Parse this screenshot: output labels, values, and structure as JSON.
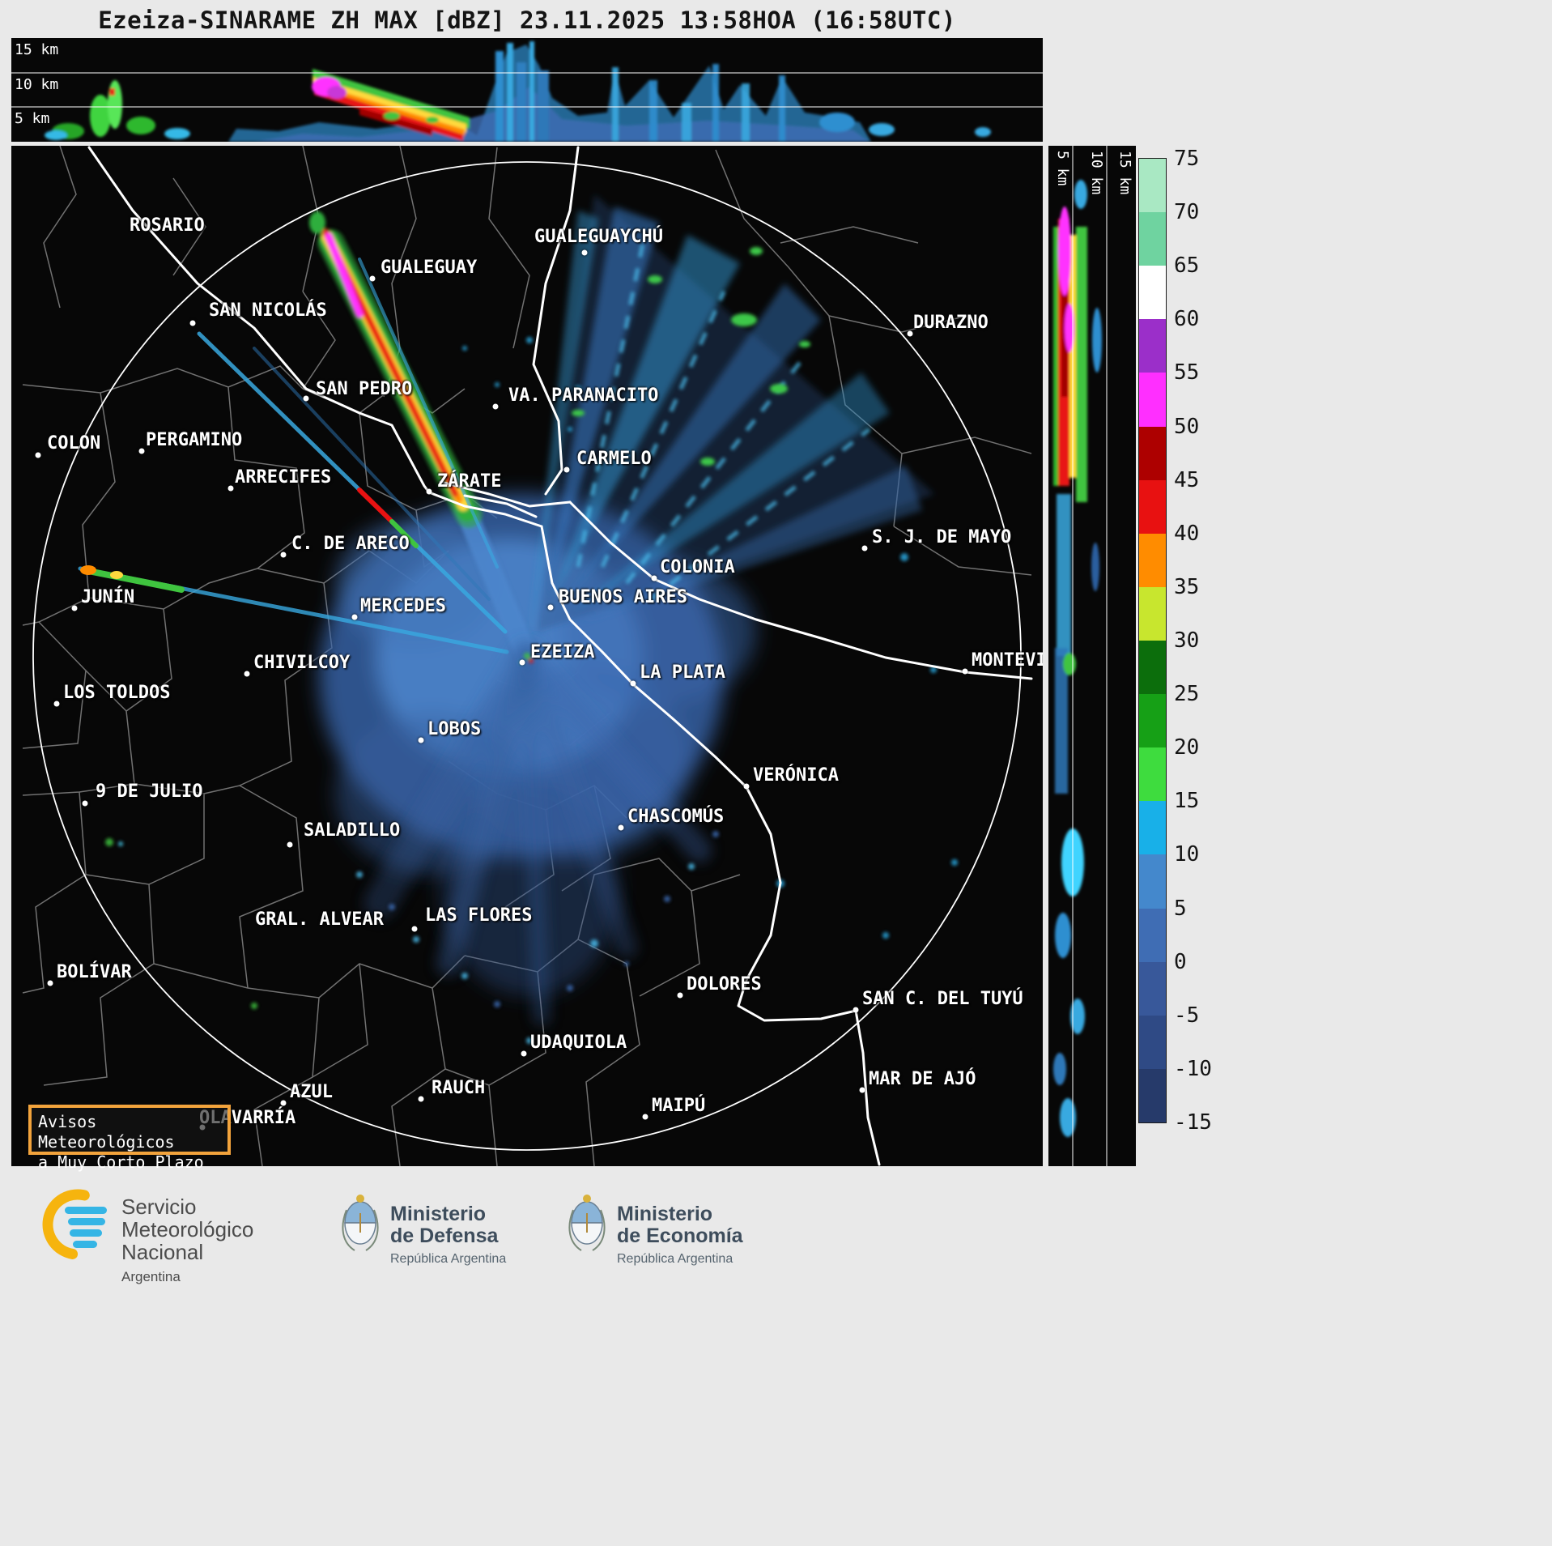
{
  "title": "Ezeiza-SINARAME ZH MAX [dBZ] 23.11.2025 13:58HOA (16:58UTC)",
  "top_profile": {
    "labels": [
      "15 km",
      "10 km",
      "5 km"
    ]
  },
  "right_profile": {
    "labels": [
      "5 km",
      "10 km",
      "15 km"
    ]
  },
  "colorbar": {
    "ticks": [
      "75",
      "70",
      "65",
      "60",
      "55",
      "50",
      "45",
      "40",
      "35",
      "30",
      "25",
      "20",
      "15",
      "10",
      "5",
      "0",
      "-5",
      "-10",
      "-15"
    ],
    "colors": [
      "#a9e8c3",
      "#6fd3a0",
      "#ffffff",
      "#9b2fc9",
      "#ff2fff",
      "#ad0000",
      "#e81111",
      "#ff8c00",
      "#c8e62e",
      "#0c6e0c",
      "#16a016",
      "#3edc3e",
      "#18b0e8",
      "#4488cc",
      "#3f6db4",
      "#38589a",
      "#2f4a85",
      "#263a6a"
    ]
  },
  "map": {
    "cities": [
      {
        "name": "ROSARIO",
        "label": [
          146,
          86
        ],
        "dot": null
      },
      {
        "name": "GUALEGUAYCHÚ",
        "label": [
          646,
          100
        ],
        "dot": [
          708,
          132
        ]
      },
      {
        "name": "GUALEGUAY",
        "label": [
          456,
          138
        ],
        "dot": [
          446,
          164
        ]
      },
      {
        "name": "SAN NICOLÁS",
        "label": [
          244,
          191
        ],
        "dot": [
          224,
          219
        ]
      },
      {
        "name": "DURAZNO",
        "label": [
          1114,
          206
        ],
        "dot": [
          1110,
          232
        ]
      },
      {
        "name": "SAN PEDRO",
        "label": [
          376,
          288
        ],
        "dot": [
          364,
          312
        ]
      },
      {
        "name": "VA. PARANACITO",
        "label": [
          614,
          296
        ],
        "dot": [
          598,
          322
        ]
      },
      {
        "name": "COLON",
        "label": [
          44,
          355
        ],
        "dot": [
          33,
          382
        ]
      },
      {
        "name": "PERGAMINO",
        "label": [
          166,
          351
        ],
        "dot": [
          161,
          377
        ]
      },
      {
        "name": "CARMELO",
        "label": [
          698,
          374
        ],
        "dot": [
          686,
          400
        ]
      },
      {
        "name": "ARRECIFES",
        "label": [
          276,
          397
        ],
        "dot": [
          271,
          423
        ]
      },
      {
        "name": "ZÁRATE",
        "label": [
          526,
          402
        ],
        "dot": [
          516,
          427
        ]
      },
      {
        "name": "C. DE ARECO",
        "label": [
          346,
          479
        ],
        "dot": [
          336,
          505
        ]
      },
      {
        "name": "S. J. DE MAYO",
        "label": [
          1063,
          471
        ],
        "dot": [
          1054,
          497
        ]
      },
      {
        "name": "COLONIA",
        "label": [
          801,
          508
        ],
        "dot": [
          794,
          534
        ]
      },
      {
        "name": "JUNÍN",
        "label": [
          86,
          545
        ],
        "dot": [
          78,
          571
        ]
      },
      {
        "name": "BUENOS AIRES",
        "label": [
          676,
          545
        ],
        "dot": [
          666,
          570
        ]
      },
      {
        "name": "MERCEDES",
        "label": [
          431,
          556
        ],
        "dot": [
          424,
          582
        ]
      },
      {
        "name": "EZEIZA",
        "label": [
          641,
          613
        ],
        "dot": [
          631,
          638
        ]
      },
      {
        "name": "CHIVILCOY",
        "label": [
          299,
          626
        ],
        "dot": [
          291,
          652
        ]
      },
      {
        "name": "LA PLATA",
        "label": [
          776,
          638
        ],
        "dot": [
          768,
          664
        ]
      },
      {
        "name": "MONTEVIDEO",
        "label": [
          1186,
          623
        ],
        "dot": [
          1178,
          649
        ]
      },
      {
        "name": "LOS TOLDOS",
        "label": [
          64,
          663
        ],
        "dot": [
          56,
          689
        ]
      },
      {
        "name": "LOBOS",
        "label": [
          514,
          708
        ],
        "dot": [
          506,
          734
        ]
      },
      {
        "name": "VERÓNICA",
        "label": [
          916,
          765
        ],
        "dot": [
          908,
          791
        ]
      },
      {
        "name": "9 DE JULIO",
        "label": [
          104,
          785
        ],
        "dot": [
          91,
          812
        ]
      },
      {
        "name": "CHASCOMÚS",
        "label": [
          761,
          816
        ],
        "dot": [
          753,
          842
        ]
      },
      {
        "name": "SALADILLO",
        "label": [
          361,
          833
        ],
        "dot": [
          344,
          863
        ]
      },
      {
        "name": "GRAL. ALVEAR",
        "label": [
          301,
          943
        ],
        "dot": null
      },
      {
        "name": "LAS FLORES",
        "label": [
          511,
          938
        ],
        "dot": [
          498,
          967
        ]
      },
      {
        "name": "BOLÍVAR",
        "label": [
          56,
          1008
        ],
        "dot": [
          48,
          1034
        ]
      },
      {
        "name": "DOLORES",
        "label": [
          834,
          1023
        ],
        "dot": [
          826,
          1049
        ]
      },
      {
        "name": "SAN C. DEL TUYÚ",
        "label": [
          1051,
          1041
        ],
        "dot": [
          1043,
          1067
        ]
      },
      {
        "name": "UDAQUIOLA",
        "label": [
          641,
          1095
        ],
        "dot": [
          633,
          1121
        ]
      },
      {
        "name": "MAR DE AJÓ",
        "label": [
          1059,
          1140
        ],
        "dot": [
          1051,
          1166
        ]
      },
      {
        "name": "AZUL",
        "label": [
          344,
          1156
        ],
        "dot": [
          336,
          1182
        ]
      },
      {
        "name": "RAUCH",
        "label": [
          519,
          1151
        ],
        "dot": [
          506,
          1177
        ]
      },
      {
        "name": "MAIPÚ",
        "label": [
          791,
          1173
        ],
        "dot": [
          783,
          1199
        ]
      },
      {
        "name": "OLAVARRÍA",
        "label": [
          232,
          1188
        ],
        "dot": [
          236,
          1212
        ]
      }
    ]
  },
  "warning_box": {
    "line1": "Avisos Meteorológicos",
    "line2": "a Muy Corto Plazo"
  },
  "footer": {
    "smn": {
      "name_lines": [
        "Servicio",
        "Meteorológico",
        "Nacional"
      ],
      "country": "Argentina"
    },
    "defensa": {
      "line1": "Ministerio",
      "line2": "de Defensa",
      "sub": "República Argentina"
    },
    "economia": {
      "line1": "Ministerio",
      "line2": "de Economía",
      "sub": "República Argentina"
    }
  },
  "colors": {
    "page_bg": "#e9e9e9",
    "panel_bg": "#070707",
    "warning_border": "#f2a33c",
    "echo_blue": "#3f6db4",
    "echo_cyan": "#18b0e8",
    "echo_green": "#3fc43f",
    "echo_red": "#e81212",
    "echo_magenta": "#ff30ff"
  }
}
